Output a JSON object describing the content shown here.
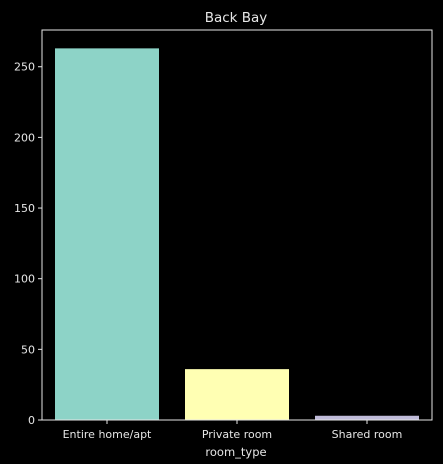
{
  "chart_data": {
    "type": "bar",
    "title": "Back Bay",
    "xlabel": "room_type",
    "ylabel": "",
    "categories": [
      "Entire home/apt",
      "Private room",
      "Shared room"
    ],
    "values": [
      263,
      36,
      3
    ],
    "ylim": [
      0,
      276
    ],
    "yticks": [
      0,
      50,
      100,
      150,
      200,
      250
    ],
    "bar_colors": [
      "#8dd3c7",
      "#ffffb3",
      "#bfbbd9"
    ],
    "grid": false,
    "legend": "none"
  },
  "colors": {
    "background": "#000000",
    "axes": "#e6e6e6",
    "text": "#e6e6e6"
  }
}
